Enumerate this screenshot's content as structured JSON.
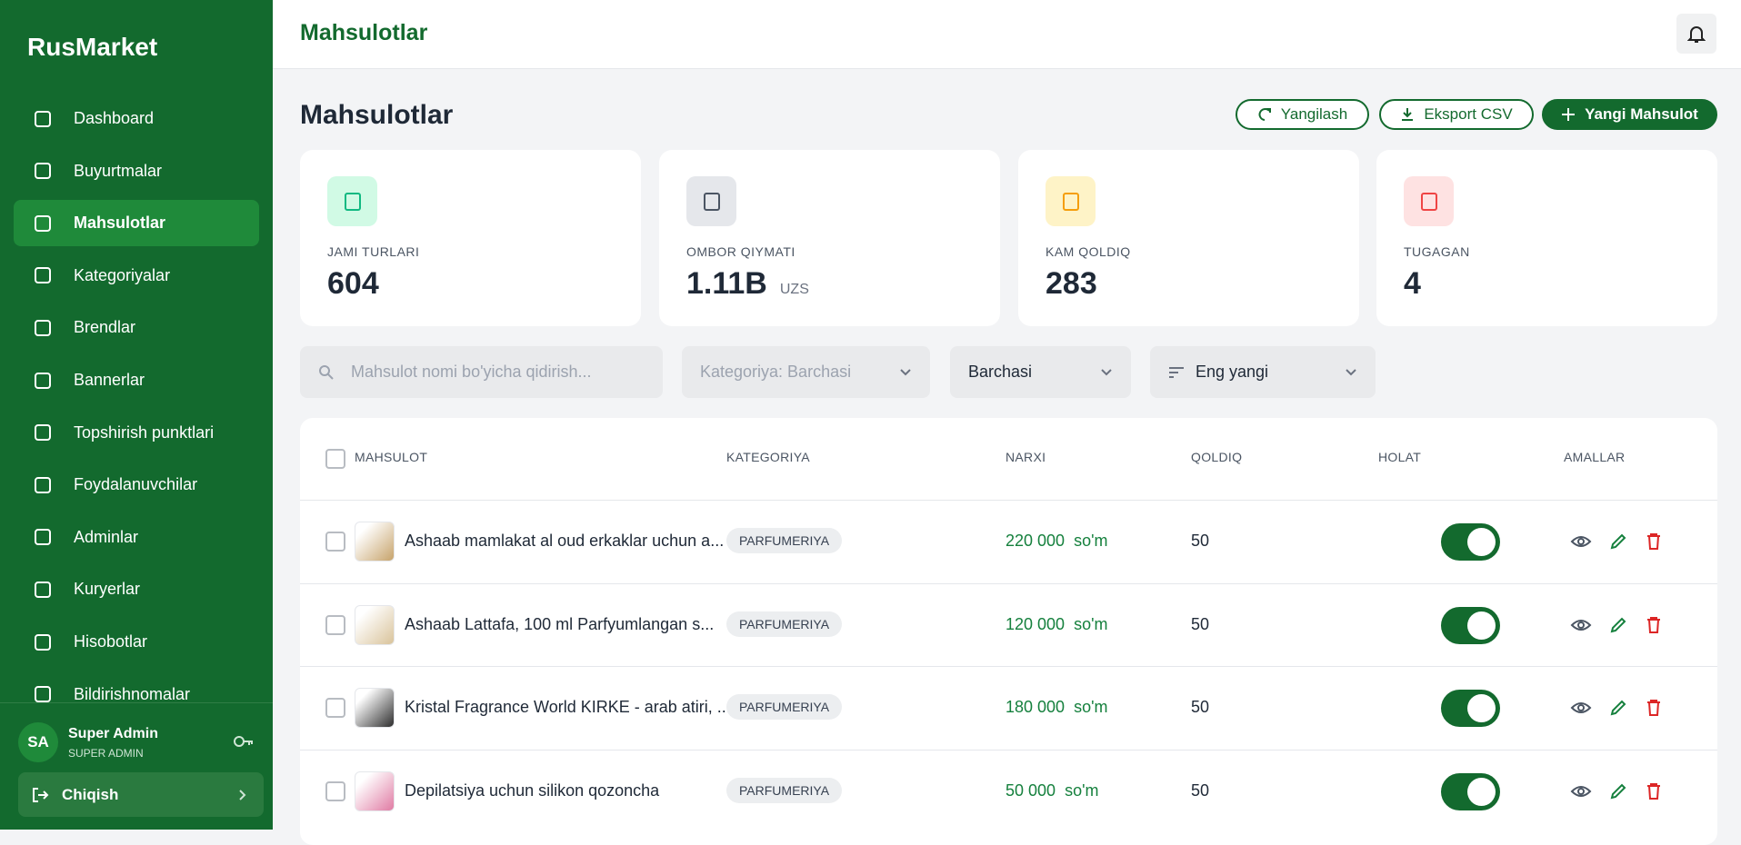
{
  "sidebar": {
    "logo": "RusMarket",
    "nav": [
      "Dashboard",
      "Buyurtmalar",
      "Mahsulotlar",
      "Kategoriyalar",
      "Brendlar",
      "Bannerlar",
      "Topshirish punktlari",
      "Foydalanuvchilar",
      "Adminlar",
      "Kuryerlar",
      "Hisobotlar",
      "Bildirishnomalar"
    ],
    "user": {
      "initials": "SA",
      "name": "Super Admin",
      "role": "SUPER ADMIN"
    },
    "logout": "Chiqish"
  },
  "header": {
    "title": "Mahsulotlar"
  },
  "page": {
    "title": "Mahsulotlar",
    "buttons": [
      "Yangilash",
      "Eksport CSV",
      "Yangi Mahsulot"
    ]
  },
  "stats": [
    {
      "label": "JAMI TURLARI",
      "value": "604"
    },
    {
      "label": "OMBOR QIYMATI",
      "value": "1.11B",
      "unit": "UZS"
    },
    {
      "label": "KAM QOLDIQ",
      "value": "283"
    },
    {
      "label": "TUGAGAN",
      "value": "4"
    }
  ],
  "filters": {
    "search": "Mahsulot nomi bo'yicha qidirish...",
    "category": "Kategoriya: Barchasi",
    "status": "Barchasi",
    "sort": "Eng yangi"
  },
  "table": {
    "columns": [
      "MAHSULOT",
      "KATEGORIYA",
      "NARXI",
      "QOLDIQ",
      "HOLAT",
      "AMALLAR"
    ],
    "rows": [
      {
        "name": "Ashaab mamlakat al oud erkaklar uchun a...",
        "category": "PARFUMERIYA",
        "price": "220 000",
        "currency": "so'm",
        "stock": "50"
      },
      {
        "name": "Ashaab Lattafa, 100 ml  Parfyumlangan s...",
        "category": "PARFUMERIYA",
        "price": "120 000",
        "currency": "so'm",
        "stock": "50"
      },
      {
        "name": "Kristal Fragrance World KIRKE - arab atiri, ...",
        "category": "PARFUMERIYA",
        "price": "180 000",
        "currency": "so'm",
        "stock": "50"
      },
      {
        "name": "Depilatsiya uchun silikon qozoncha",
        "category": "PARFUMERIYA",
        "price": "50 000",
        "currency": "so'm",
        "stock": "50"
      }
    ]
  }
}
